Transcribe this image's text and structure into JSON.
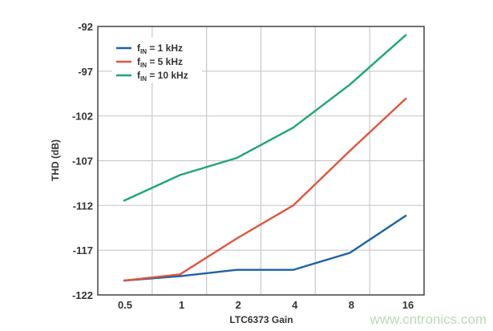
{
  "chart_data": {
    "type": "line",
    "title": "",
    "xlabel": "LTC6373 Gain",
    "ylabel": "THD (dB)",
    "categories": [
      "0.5",
      "1",
      "2",
      "4",
      "8",
      "16"
    ],
    "ylim": [
      -122,
      -92
    ],
    "yticks": [
      "-92",
      "-97",
      "-102",
      "-107",
      "-112",
      "-117",
      "-122"
    ],
    "grid": true,
    "legend_position": "top-left",
    "series": [
      {
        "name": "fIN = 1 kHz",
        "name_main": "f",
        "name_sub": "IN",
        "name_rest": " = 1 kHz",
        "color": "#1c62a6",
        "values": [
          -120.4,
          -119.9,
          -119.2,
          -119.2,
          -117.3,
          -113.1
        ]
      },
      {
        "name": "fIN = 5 kHz",
        "name_main": "f",
        "name_sub": "IN",
        "name_rest": " = 5 kHz",
        "color": "#e0553d",
        "values": [
          -120.4,
          -119.7,
          -115.7,
          -112.0,
          -105.9,
          -100.0
        ]
      },
      {
        "name": "fIN = 10 kHz",
        "name_main": "f",
        "name_sub": "IN",
        "name_rest": " = 10 kHz",
        "color": "#1ea57b",
        "values": [
          -111.5,
          -108.6,
          -106.7,
          -103.3,
          -98.5,
          -92.9
        ]
      }
    ]
  },
  "watermark": "www.cntronics.com"
}
